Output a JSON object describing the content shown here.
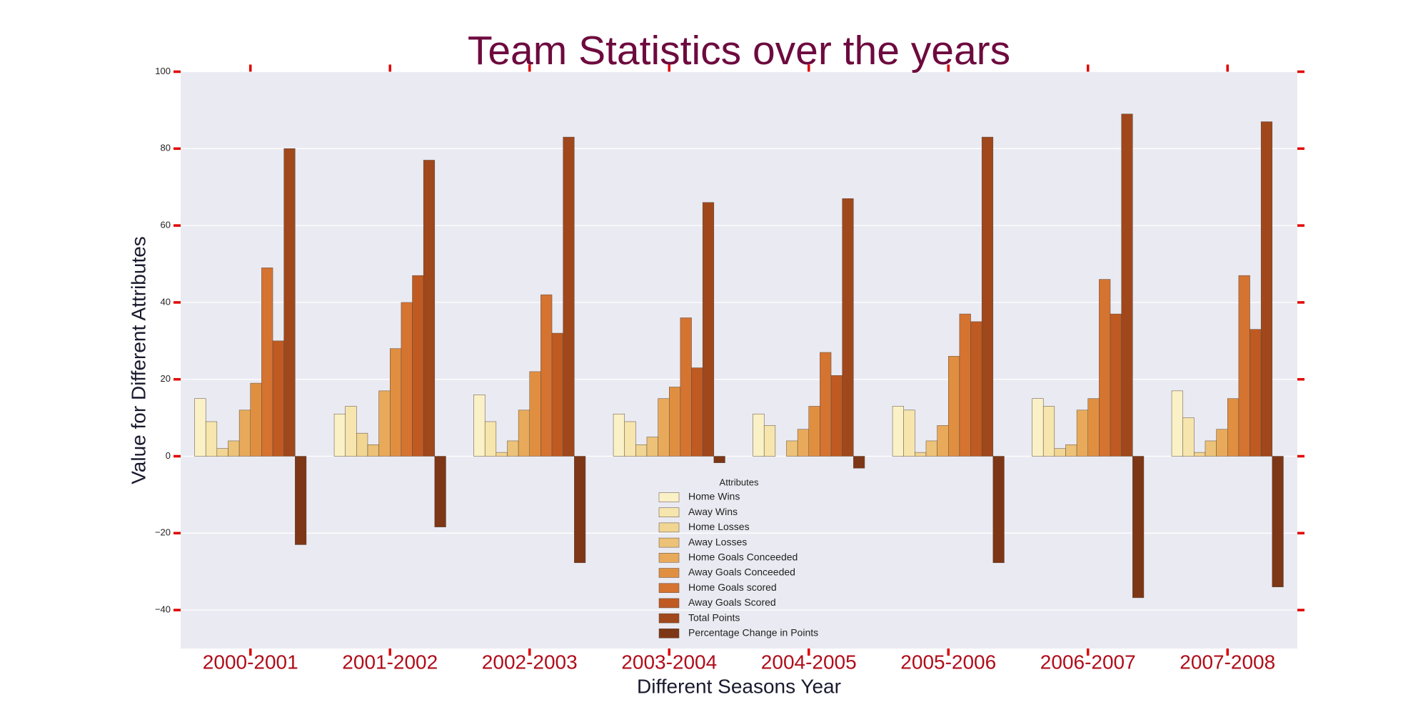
{
  "chart_data": {
    "type": "bar",
    "title": "Team Statistics over the years",
    "x_label": "Different Seasons Year",
    "y_label": "Value for Different Attributes",
    "legend_title": "Attributes",
    "legend_position": "lower center",
    "grid": true,
    "categories": [
      "2000-2001",
      "2001-2002",
      "2002-2003",
      "2003-2004",
      "2004-2005",
      "2005-2006",
      "2006-2007",
      "2007-2008"
    ],
    "series": [
      {
        "name": "Home Wins",
        "color": "#fbf1c7",
        "values": [
          15,
          11,
          16,
          11,
          11,
          13,
          15,
          17
        ]
      },
      {
        "name": "Away Wins",
        "color": "#f6e5ad",
        "values": [
          9,
          13,
          9,
          9,
          8,
          12,
          13,
          10
        ]
      },
      {
        "name": "Home Losses",
        "color": "#f1d593",
        "values": [
          2,
          6,
          1,
          3,
          0,
          1,
          2,
          1
        ]
      },
      {
        "name": "Away Losses",
        "color": "#ecc278",
        "values": [
          4,
          3,
          4,
          5,
          4,
          4,
          3,
          4
        ]
      },
      {
        "name": "Home Goals Conceeded",
        "color": "#e8aa5a",
        "values": [
          12,
          17,
          12,
          15,
          7,
          8,
          12,
          7
        ]
      },
      {
        "name": "Away Goals Conceeded",
        "color": "#e08f41",
        "values": [
          19,
          28,
          22,
          18,
          13,
          26,
          15,
          15
        ]
      },
      {
        "name": "Home Goals scored",
        "color": "#d57331",
        "values": [
          49,
          40,
          42,
          36,
          27,
          37,
          46,
          47
        ]
      },
      {
        "name": "Away Goals Scored",
        "color": "#bf5a22",
        "values": [
          30,
          47,
          32,
          23,
          21,
          35,
          37,
          33
        ]
      },
      {
        "name": "Total Points",
        "color": "#a0471c",
        "values": [
          80,
          77,
          83,
          66,
          67,
          83,
          89,
          87
        ]
      },
      {
        "name": "Percentage Change in Points",
        "color": "#7d3616",
        "values": [
          -23,
          -18.4,
          -27.7,
          -1.7,
          -3.1,
          -27.7,
          -36.8,
          -34
        ]
      }
    ],
    "ylim": [
      -50,
      100
    ],
    "yticks": [
      {
        "value": -40,
        "label": "−40"
      },
      {
        "value": -20,
        "label": "−20"
      },
      0,
      20,
      40,
      60,
      80,
      100
    ]
  }
}
